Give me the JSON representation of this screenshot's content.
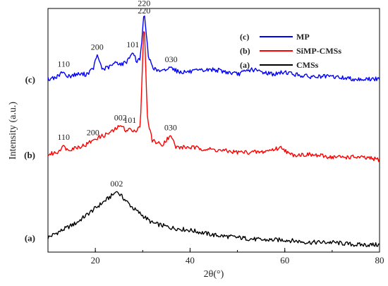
{
  "chart_data": {
    "type": "line",
    "xlabel": "2θ(°)",
    "ylabel": "Intensity (a.u.)",
    "xlim": [
      10,
      80
    ],
    "ylim": [
      0,
      1
    ],
    "x_ticks": [
      20,
      40,
      60,
      80
    ],
    "y_ticks_shown": false,
    "grid": false,
    "legend_position": "top-right",
    "legend": [
      {
        "tag": "(c)",
        "label": "MP",
        "color": "#0000ff",
        "series_index": 2
      },
      {
        "tag": "(b)",
        "label": "SiMP-CMSs",
        "color": "#ff0000",
        "series_index": 1
      },
      {
        "tag": "(a)",
        "label": "CMSs",
        "color": "#000000",
        "series_index": 0
      }
    ],
    "series": [
      {
        "tag": "(a)",
        "name": "CMSs",
        "color": "#000000",
        "x": [
          10,
          12,
          14,
          16,
          18,
          20,
          22,
          24,
          24.5,
          26,
          28,
          30,
          32,
          36,
          40,
          45,
          50,
          55,
          60,
          65,
          70,
          75,
          80
        ],
        "y": [
          0.06,
          0.08,
          0.1,
          0.12,
          0.15,
          0.18,
          0.21,
          0.24,
          0.25,
          0.22,
          0.18,
          0.15,
          0.12,
          0.1,
          0.09,
          0.07,
          0.06,
          0.05,
          0.05,
          0.04,
          0.04,
          0.03,
          0.03
        ],
        "peaks": [
          {
            "x": 24.5,
            "y": 0.25,
            "label": "002"
          }
        ]
      },
      {
        "tag": "(b)",
        "name": "SiMP-CMSs",
        "color": "#ff0000",
        "x": [
          10,
          12,
          13.3,
          14,
          16,
          18,
          19.5,
          20.5,
          22,
          24,
          25.3,
          26.5,
          27.3,
          28,
          29.5,
          30.3,
          31,
          32,
          34,
          35.9,
          37,
          40,
          45,
          50,
          55,
          59.5,
          61,
          65,
          70,
          75,
          80
        ],
        "y": [
          0.4,
          0.41,
          0.44,
          0.42,
          0.43,
          0.44,
          0.46,
          0.47,
          0.48,
          0.5,
          0.52,
          0.5,
          0.51,
          0.49,
          0.52,
          0.96,
          0.55,
          0.46,
          0.44,
          0.48,
          0.43,
          0.43,
          0.42,
          0.41,
          0.41,
          0.43,
          0.4,
          0.4,
          0.39,
          0.39,
          0.38
        ],
        "peaks": [
          {
            "x": 13.3,
            "y": 0.44,
            "label": "110"
          },
          {
            "x": 19.5,
            "y": 0.46,
            "label": "200"
          },
          {
            "x": 25.3,
            "y": 0.52,
            "label": "002"
          },
          {
            "x": 27.3,
            "y": 0.51,
            "label": "101"
          },
          {
            "x": 30.3,
            "y": 0.96,
            "label": "220"
          },
          {
            "x": 35.9,
            "y": 0.48,
            "label": "030"
          }
        ]
      },
      {
        "tag": "(c)",
        "name": "MP",
        "color": "#0000ff",
        "x": [
          10,
          12,
          13.3,
          14,
          16,
          18,
          19.5,
          20.4,
          21.5,
          23,
          24.5,
          25.5,
          26.5,
          27.9,
          28.8,
          29.5,
          30.3,
          31.2,
          32.5,
          34,
          36,
          37.5,
          40,
          45,
          50,
          53,
          55,
          58,
          60,
          62,
          65,
          70,
          75,
          80
        ],
        "y": [
          0.71,
          0.72,
          0.74,
          0.72,
          0.73,
          0.73,
          0.75,
          0.81,
          0.75,
          0.76,
          0.78,
          0.77,
          0.78,
          0.82,
          0.78,
          0.8,
          0.99,
          0.8,
          0.75,
          0.74,
          0.76,
          0.74,
          0.74,
          0.75,
          0.73,
          0.75,
          0.74,
          0.73,
          0.74,
          0.73,
          0.72,
          0.72,
          0.71,
          0.71
        ],
        "peaks": [
          {
            "x": 13.3,
            "y": 0.74,
            "label": "110"
          },
          {
            "x": 20.4,
            "y": 0.81,
            "label": "200"
          },
          {
            "x": 27.9,
            "y": 0.82,
            "label": "101"
          },
          {
            "x": 30.3,
            "y": 0.99,
            "label": "220"
          },
          {
            "x": 36.0,
            "y": 0.76,
            "label": "030"
          }
        ]
      }
    ]
  }
}
